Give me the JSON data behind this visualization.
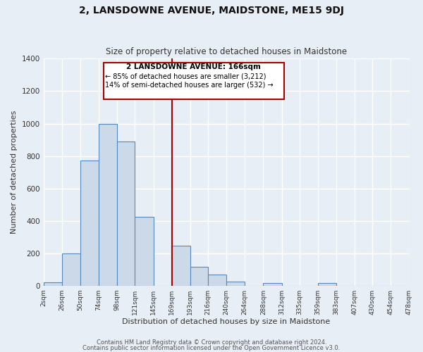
{
  "title": "2, LANSDOWNE AVENUE, MAIDSTONE, ME15 9DJ",
  "subtitle": "Size of property relative to detached houses in Maidstone",
  "xlabel": "Distribution of detached houses by size in Maidstone",
  "ylabel": "Number of detached properties",
  "bar_color": "#ccd9e8",
  "bar_edge_color": "#5588bb",
  "background_color": "#e8eef5",
  "plot_bg_color": "#e8eef5",
  "grid_color": "#ffffff",
  "vline_color": "#aa0000",
  "vline_x_bin_index": 7,
  "annotation_title": "2 LANSDOWNE AVENUE: 166sqm",
  "annotation_line1": "← 85% of detached houses are smaller (3,212)",
  "annotation_line2": "14% of semi-detached houses are larger (532) →",
  "annotation_box_color": "#ffffff",
  "annotation_box_edge": "#aa0000",
  "bins": [
    2,
    26,
    50,
    74,
    98,
    121,
    145,
    169,
    193,
    216,
    240,
    264,
    288,
    312,
    335,
    359,
    383,
    407,
    430,
    454,
    478
  ],
  "counts": [
    20,
    200,
    770,
    1000,
    890,
    425,
    0,
    245,
    115,
    70,
    25,
    0,
    18,
    0,
    0,
    15,
    0,
    0,
    0,
    0
  ],
  "tick_labels": [
    "2sqm",
    "26sqm",
    "50sqm",
    "74sqm",
    "98sqm",
    "121sqm",
    "145sqm",
    "169sqm",
    "193sqm",
    "216sqm",
    "240sqm",
    "264sqm",
    "288sqm",
    "312sqm",
    "335sqm",
    "359sqm",
    "383sqm",
    "407sqm",
    "430sqm",
    "454sqm",
    "478sqm"
  ],
  "ylim": [
    0,
    1400
  ],
  "yticks": [
    0,
    200,
    400,
    600,
    800,
    1000,
    1200,
    1400
  ],
  "footer1": "Contains HM Land Registry data © Crown copyright and database right 2024.",
  "footer2": "Contains public sector information licensed under the Open Government Licence v3.0."
}
